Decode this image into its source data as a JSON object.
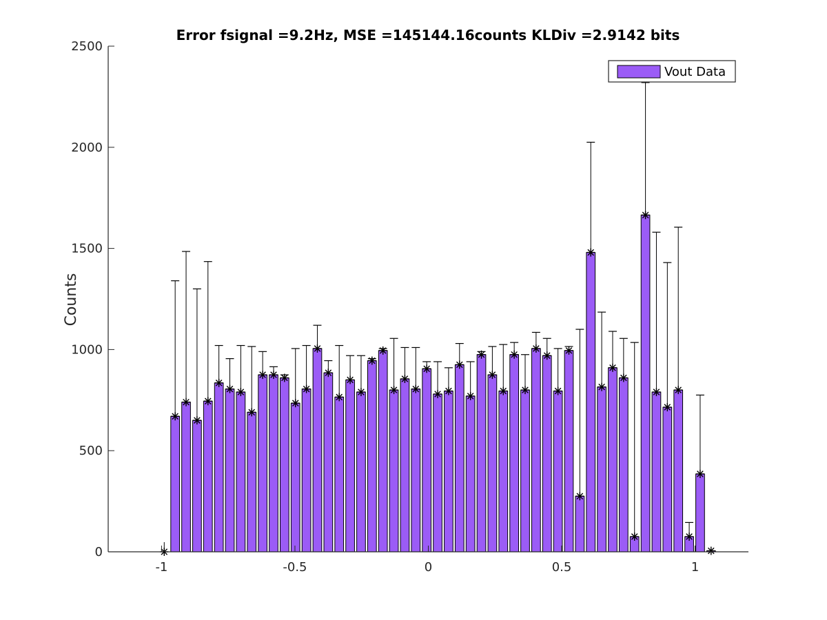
{
  "chart_data": {
    "type": "bar",
    "title": "Error fsignal =9.2Hz, MSE =145144.16counts KLDiv =2.9142 bits",
    "xlabel": "",
    "ylabel": "Counts",
    "xlim": [
      -1.2,
      1.2
    ],
    "ylim": [
      0,
      2500
    ],
    "xticks": [
      -1,
      -0.5,
      0,
      0.5,
      1
    ],
    "xtick_labels": [
      "-1",
      "-0.5",
      "0",
      "0.5",
      "1"
    ],
    "yticks": [
      0,
      500,
      1000,
      1500,
      2000,
      2500
    ],
    "ytick_labels": [
      "0",
      "500",
      "1000",
      "1500",
      "2000",
      "2500"
    ],
    "grid": false,
    "legend_position": "top-right",
    "bar_color": "#9b5cf6",
    "series": [
      {
        "name": "Vout Data",
        "x": [
          -0.99,
          -0.949,
          -0.908,
          -0.867,
          -0.826,
          -0.785,
          -0.744,
          -0.703,
          -0.662,
          -0.621,
          -0.58,
          -0.539,
          -0.498,
          -0.457,
          -0.416,
          -0.375,
          -0.334,
          -0.293,
          -0.252,
          -0.211,
          -0.17,
          -0.129,
          -0.088,
          -0.047,
          -0.006,
          0.035,
          0.076,
          0.117,
          0.158,
          0.199,
          0.24,
          0.281,
          0.322,
          0.363,
          0.404,
          0.445,
          0.486,
          0.527,
          0.568,
          0.609,
          0.65,
          0.691,
          0.732,
          0.773,
          0.814,
          0.855,
          0.896,
          0.937,
          0.978,
          1.019,
          1.06
        ],
        "values": [
          0,
          670,
          740,
          650,
          745,
          835,
          805,
          790,
          690,
          875,
          875,
          860,
          735,
          805,
          1005,
          885,
          765,
          850,
          790,
          945,
          995,
          800,
          855,
          805,
          905,
          780,
          795,
          925,
          770,
          975,
          875,
          795,
          975,
          800,
          1005,
          970,
          795,
          995,
          275,
          1480,
          815,
          910,
          860,
          75,
          1665,
          790,
          715,
          800,
          75,
          385,
          5
        ]
      },
      {
        "name": "",
        "values": [
          0,
          670,
          740,
          650,
          745,
          835,
          805,
          790,
          690,
          875,
          875,
          860,
          735,
          805,
          1005,
          885,
          765,
          850,
          790,
          945,
          995,
          800,
          855,
          805,
          905,
          780,
          795,
          925,
          770,
          975,
          875,
          795,
          975,
          800,
          1005,
          970,
          795,
          995,
          275,
          1480,
          815,
          910,
          860,
          75,
          1665,
          790,
          715,
          800,
          75,
          385,
          5
        ],
        "error_upper": [
          0,
          1340,
          1485,
          1300,
          1435,
          1020,
          955,
          1020,
          1015,
          990,
          915,
          875,
          1005,
          1020,
          1120,
          945,
          1020,
          970,
          970,
          955,
          1005,
          1055,
          1010,
          1010,
          940,
          940,
          910,
          1030,
          940,
          990,
          1015,
          1025,
          1035,
          975,
          1085,
          1055,
          1005,
          1015,
          1100,
          2025,
          1185,
          1090,
          1055,
          1035,
          2320,
          1580,
          1430,
          1605,
          145,
          775,
          5
        ]
      }
    ]
  }
}
